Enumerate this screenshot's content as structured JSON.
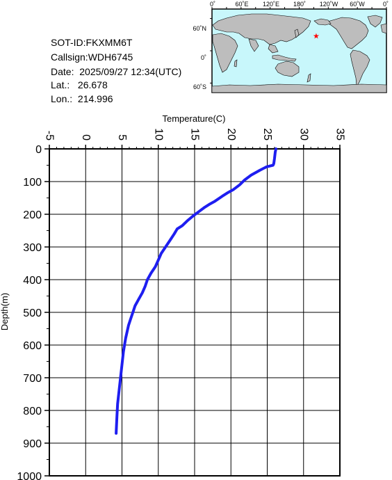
{
  "info": {
    "sot_id": "SOT-ID:FKXMM6T",
    "callsign": "Callsign:WDH6745",
    "date": "Date:  2025/09/27 12:34(UTC)",
    "lat": "Lat.:   26.678",
    "lon": "Lon.:  214.996"
  },
  "map": {
    "top_ticks": [
      "0˚",
      "60˚E",
      "120˚E",
      "180˚",
      "120˚W",
      "60˚W",
      "0˚"
    ],
    "left_ticks": [
      "60˚N",
      "0˚",
      "60˚S"
    ],
    "marker_lat": 26.678,
    "marker_lon": 214.996,
    "ocean_color": "#c8f7fb",
    "land_color": "#bdbdbd",
    "marker_color": "#ff0000"
  },
  "chart_data": {
    "type": "line",
    "xlabel": "Temperature(C)",
    "ylabel": "Depth(m)",
    "xlim": [
      -5,
      35
    ],
    "ylim": [
      1000,
      0
    ],
    "x_ticks": [
      "-5",
      "0",
      "5",
      "10",
      "15",
      "20",
      "25",
      "30",
      "35"
    ],
    "y_ticks": [
      "0",
      "100",
      "200",
      "300",
      "400",
      "500",
      "600",
      "700",
      "800",
      "900",
      "1000"
    ],
    "grid": true,
    "line_color": "#1e1ef0",
    "series": [
      {
        "x": [
          26.2,
          26.1,
          26.0,
          25.9,
          25.8,
          24.9,
          24.0,
          22.8,
          21.9,
          21.2,
          20.3,
          19.5,
          18.8,
          17.8,
          17.0,
          16.3,
          15.7,
          14.8,
          14.0,
          13.3,
          12.6,
          12.2,
          11.6,
          11.0,
          10.4,
          10.0,
          9.6,
          9.0,
          8.5,
          8.2,
          7.8,
          7.3,
          6.8,
          6.5,
          6.2,
          5.9,
          5.7,
          5.5,
          5.2,
          5.0,
          4.8,
          4.6,
          4.4,
          4.3,
          4.2
        ],
        "y": [
          0,
          10,
          30,
          45,
          50,
          55,
          65,
          80,
          95,
          110,
          125,
          135,
          145,
          160,
          170,
          180,
          190,
          205,
          220,
          235,
          245,
          260,
          280,
          300,
          320,
          340,
          360,
          380,
          400,
          420,
          440,
          460,
          480,
          500,
          520,
          540,
          560,
          580,
          620,
          660,
          700,
          740,
          780,
          820,
          870
        ]
      }
    ]
  }
}
